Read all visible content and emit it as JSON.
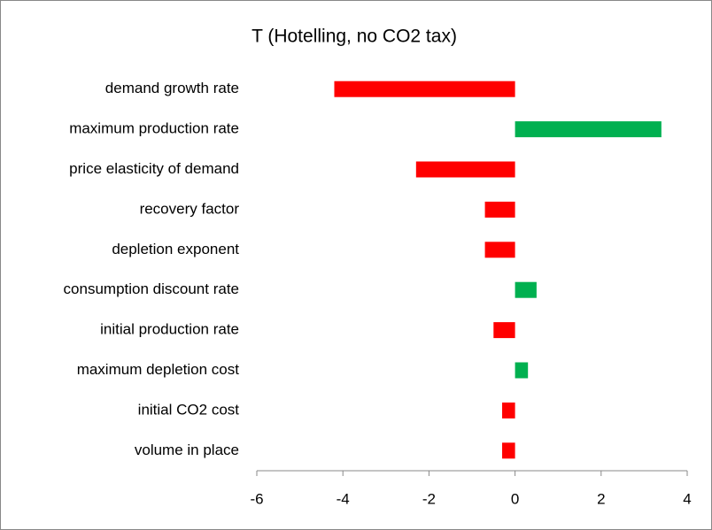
{
  "chart_data": {
    "type": "bar",
    "orientation": "horizontal",
    "title": "T (Hotelling, no CO2 tax)",
    "categories": [
      "demand growth rate",
      "maximum production rate",
      "price elasticity of demand",
      "recovery factor",
      "depletion exponent",
      "consumption discount rate",
      "initial production rate",
      "maximum depletion cost",
      "initial CO2 cost",
      "volume in place"
    ],
    "values": [
      -4.2,
      3.4,
      -2.3,
      -0.7,
      -0.7,
      0.5,
      -0.5,
      0.3,
      -0.3,
      -0.3
    ],
    "positive_color": "#00b050",
    "negative_color": "#ff0000",
    "xlim": [
      -6,
      4
    ],
    "xticks": [
      -6,
      -4,
      -2,
      0,
      2,
      4
    ],
    "grid": false
  }
}
